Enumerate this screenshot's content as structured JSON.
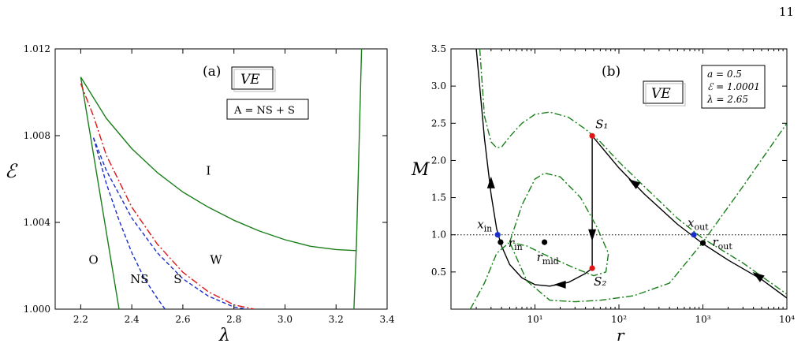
{
  "page_number": "11",
  "chart_data": [
    {
      "type": "line",
      "panel_label": "(a)",
      "tag": "VE",
      "legend_note": "A = NS + S",
      "xlabel": "λ",
      "ylabel": "ℰ",
      "xlim": [
        2.1,
        3.4
      ],
      "ylim": [
        1.0,
        1.012
      ],
      "xticks": [
        2.2,
        2.4,
        2.6,
        2.8,
        3.0,
        3.2,
        3.4
      ],
      "xtick_labels": [
        "2.2",
        "2.4",
        "2.6",
        "2.8",
        "3.0",
        "3.2",
        "3.4"
      ],
      "yticks": [
        1.0,
        1.004,
        1.008,
        1.012
      ],
      "ytick_labels": [
        "1.000",
        "1.004",
        "1.008",
        "1.012"
      ],
      "region_labels": [
        {
          "text": "I",
          "x": 2.7,
          "y": 1.0062
        },
        {
          "text": "O",
          "x": 2.25,
          "y": 1.0021
        },
        {
          "text": "NS",
          "x": 2.43,
          "y": 1.0012
        },
        {
          "text": "S",
          "x": 2.58,
          "y": 1.0012
        },
        {
          "text": "W",
          "x": 2.73,
          "y": 1.0021
        }
      ],
      "series": [
        {
          "color": "#1a7f1a",
          "dash": "solid",
          "x": [
            2.2,
            2.35
          ],
          "y": [
            1.0107,
            1.0
          ]
        },
        {
          "color": "#1a7f1a",
          "dash": "solid",
          "x": [
            2.2,
            2.3,
            2.4,
            2.5,
            2.6,
            2.7,
            2.8,
            2.9,
            3.0,
            3.1,
            3.2,
            3.28
          ],
          "y": [
            1.0107,
            1.0088,
            1.0074,
            1.0063,
            1.0054,
            1.0047,
            1.0041,
            1.0036,
            1.0032,
            1.0029,
            1.00275,
            1.0027
          ]
        },
        {
          "color": "#1a7f1a",
          "dash": "solid",
          "x": [
            3.27,
            3.28,
            3.3
          ],
          "y": [
            1.0,
            1.003,
            1.012
          ]
        },
        {
          "color": "#e01515",
          "dash": "dashdot",
          "x": [
            2.2,
            2.25,
            2.3,
            2.4,
            2.5,
            2.6,
            2.7,
            2.8,
            2.88
          ],
          "y": [
            1.0104,
            1.0089,
            1.0071,
            1.0047,
            1.003,
            1.0017,
            1.0008,
            1.0002,
            1.0
          ]
        },
        {
          "color": "#1a2ecc",
          "dash": "dashed",
          "x": [
            2.25,
            2.3,
            2.35,
            2.4,
            2.45,
            2.5,
            2.53
          ],
          "y": [
            1.0079,
            1.0058,
            1.0041,
            1.0026,
            1.0014,
            1.0005,
            1.0
          ]
        },
        {
          "color": "#1a2ecc",
          "dash": "dashed",
          "x": [
            2.25,
            2.3,
            2.4,
            2.5,
            2.6,
            2.7,
            2.8,
            2.85
          ],
          "y": [
            1.0079,
            1.0064,
            1.0042,
            1.0026,
            1.0014,
            1.0006,
            1.0001,
            1.0
          ]
        }
      ]
    },
    {
      "type": "line",
      "panel_label": "(b)",
      "tag": "VE",
      "params": [
        "a = 0.5",
        "ℰ = 1.0001",
        "λ = 2.65"
      ],
      "xlabel": "r",
      "ylabel": "M",
      "xscale": "log",
      "xlim": [
        1,
        10000
      ],
      "ylim": [
        0.0,
        3.5
      ],
      "xticks": [
        10,
        100,
        1000,
        10000
      ],
      "xtick_labels": [
        "10¹",
        "10²",
        "10³",
        "10⁴"
      ],
      "yticks": [
        0.5,
        1.0,
        1.5,
        2.0,
        2.5,
        3.0,
        3.5
      ],
      "ytick_labels": [
        "0.5",
        "1.0",
        "1.5",
        "2.0",
        "2.5",
        "3.0",
        "3.5"
      ],
      "sonic_line": 1.0,
      "series": [
        {
          "color": "#000000",
          "dash": "solid",
          "x": [
            2.0,
            2.5,
            3.0,
            3.5,
            4.0,
            5.0,
            7.0,
            10.0,
            15.0,
            25.0,
            40.0,
            48.0
          ],
          "y": [
            3.5,
            2.3,
            1.55,
            1.08,
            0.85,
            0.6,
            0.42,
            0.33,
            0.31,
            0.36,
            0.48,
            0.55
          ]
        },
        {
          "color": "#000000",
          "dash": "solid",
          "x": [
            48,
            100,
            200,
            500,
            1000,
            2000,
            5000,
            10000
          ],
          "y": [
            2.33,
            1.9,
            1.55,
            1.14,
            0.88,
            0.66,
            0.4,
            0.15
          ]
        },
        {
          "color": "#000000",
          "dash": "solid",
          "x": [
            48,
            48
          ],
          "y": [
            2.33,
            0.55
          ]
        },
        {
          "color": "#1a7f1a",
          "dash": "dashdot",
          "x": [
            2.2,
            2.5,
            3.0,
            3.5,
            4.0,
            5.0,
            7.0,
            10.0,
            15.0,
            25.0,
            40.0,
            60.0,
            100.0,
            200.0,
            500.0,
            1000.0,
            3000.0,
            10000.0
          ],
          "y": [
            3.5,
            2.6,
            2.25,
            2.17,
            2.18,
            2.32,
            2.5,
            2.62,
            2.65,
            2.58,
            2.42,
            2.25,
            1.98,
            1.65,
            1.22,
            0.95,
            0.62,
            0.2
          ]
        },
        {
          "color": "#1a7f1a",
          "dash": "dashdot",
          "x": [
            1.7,
            2.5,
            3.5,
            5.0,
            8.0,
            15.0,
            30.0,
            60.0,
            150.0,
            400.0,
            1000.0,
            3000.0,
            10000.0
          ],
          "y": [
            0.0,
            0.35,
            0.75,
            0.9,
            0.38,
            0.12,
            0.1,
            0.12,
            0.18,
            0.35,
            0.9,
            1.65,
            2.5
          ]
        },
        {
          "color": "#1a7f1a",
          "dash": "dashdot",
          "x": [
            5.0,
            7.0,
            10.0,
            13.0,
            20.0,
            35.0,
            55.0,
            75.0,
            70.0,
            50.0,
            30.0,
            15.0,
            8.0,
            5.0
          ],
          "y": [
            0.9,
            1.4,
            1.75,
            1.83,
            1.78,
            1.5,
            1.1,
            0.75,
            0.5,
            0.45,
            0.55,
            0.7,
            0.85,
            0.9
          ]
        }
      ],
      "points": [
        {
          "label": "S₁",
          "x": 48,
          "y": 2.33,
          "color": "#e01515"
        },
        {
          "label": "S₂",
          "x": 48,
          "y": 0.55,
          "color": "#e01515"
        },
        {
          "label": "x_in",
          "x": 3.6,
          "y": 1.0,
          "color": "#1a2ecc"
        },
        {
          "label": "x_out",
          "x": 780,
          "y": 1.0,
          "color": "#1a2ecc"
        },
        {
          "label": "r_in",
          "x": 3.9,
          "y": 0.9,
          "color": "#000000"
        },
        {
          "label": "r_mid",
          "x": 13,
          "y": 0.9,
          "color": "#000000"
        },
        {
          "label": "r_out",
          "x": 1000,
          "y": 0.89,
          "color": "#000000"
        }
      ],
      "arrows": [
        {
          "x": 3.0,
          "y": 1.7,
          "direction": "up"
        },
        {
          "x": 20.0,
          "y": 0.33,
          "direction": "left"
        },
        {
          "x": 48.0,
          "y": 1.0,
          "direction": "down"
        },
        {
          "x": 150.0,
          "y": 1.7,
          "direction": "up-left"
        },
        {
          "x": 4500.0,
          "y": 0.45,
          "direction": "up-left"
        }
      ]
    }
  ]
}
